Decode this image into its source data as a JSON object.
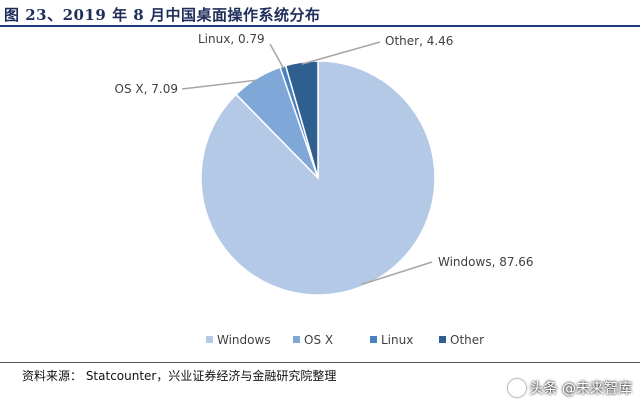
{
  "title": "图 23、2019 年 8 月中国桌面操作系统分布",
  "source": "资料来源： Statcounter，兴业证券经济与金融研究院整理",
  "watermark": "头条 @未来智库",
  "chart_data": {
    "type": "pie",
    "categories": [
      "Windows",
      "OS X",
      "Linux",
      "Other"
    ],
    "values": [
      87.66,
      7.09,
      0.79,
      4.46
    ],
    "data_labels": [
      "Windows, 87.66",
      "OS X, 7.09",
      "Linux, 0.79",
      "Other, 4.46"
    ],
    "colors": [
      "#b4c9e6",
      "#7fa8d8",
      "#4a80bf",
      "#2f5f8f"
    ],
    "legend": {
      "position": "bottom",
      "entries": [
        "Windows",
        "OS X",
        "Linux",
        "Other"
      ]
    }
  }
}
